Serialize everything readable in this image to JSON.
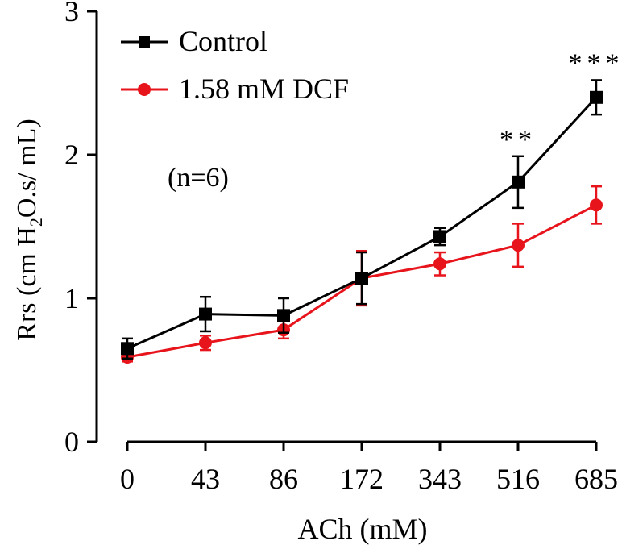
{
  "chart_data": {
    "type": "line",
    "title": "",
    "xlabel": "ACh (mM)",
    "ylabel_parts": [
      "Rrs (cm H",
      "2",
      "O.s/ mL)"
    ],
    "categories": [
      "0",
      "43",
      "86",
      "172",
      "343",
      "516",
      "685"
    ],
    "ylim": [
      0,
      3
    ],
    "yticks": [
      "0",
      "1",
      "2",
      "3"
    ],
    "grid": false,
    "legend_position": "top-left",
    "annotation": "(n=6)",
    "series": [
      {
        "name": "Control",
        "color": "#000000",
        "marker": "square",
        "values": [
          0.65,
          0.89,
          0.88,
          1.14,
          1.43,
          1.81,
          2.4
        ],
        "errors": [
          0.07,
          0.12,
          0.12,
          0.18,
          0.06,
          0.18,
          0.12
        ]
      },
      {
        "name": "1.58 mM DCF",
        "color": "#e8141c",
        "marker": "circle",
        "values": [
          0.59,
          0.69,
          0.78,
          1.14,
          1.24,
          1.37,
          1.65
        ],
        "errors": [
          0.03,
          0.05,
          0.06,
          0.19,
          0.08,
          0.15,
          0.13
        ]
      }
    ],
    "significance": [
      {
        "category": "516",
        "label": "**"
      },
      {
        "category": "685",
        "label": "***"
      }
    ]
  }
}
